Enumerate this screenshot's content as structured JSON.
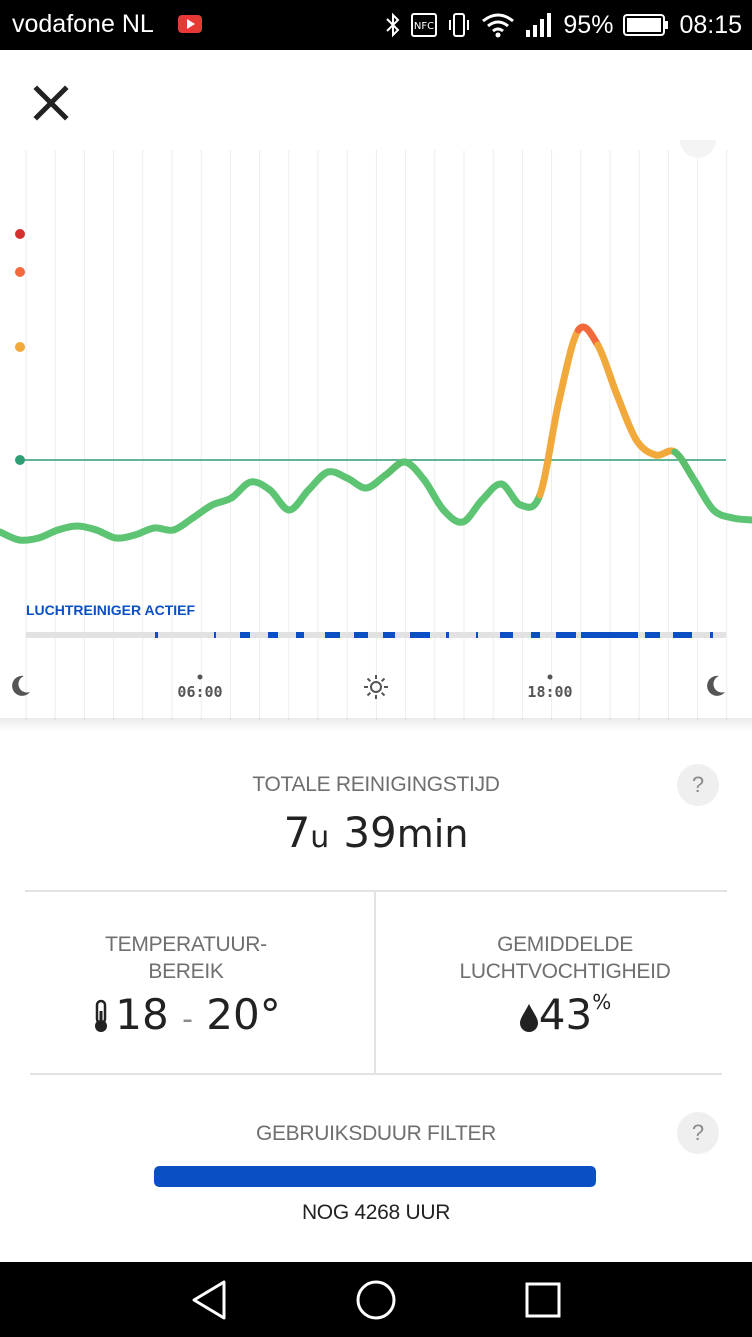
{
  "status_bar": {
    "carrier": "vodafone NL",
    "battery": "95%",
    "time": "08:15"
  },
  "chart_data": {
    "type": "line",
    "xlabel": "",
    "ylabel": "",
    "x_ticks": [
      "06:00",
      "18:00"
    ],
    "x_tick_icons": [
      "moon-icon",
      "sun-icon",
      "moon-icon"
    ],
    "series": [
      {
        "values": [
          [
            0,
            532
          ],
          [
            1,
            540
          ],
          [
            2,
            538
          ],
          [
            3,
            530
          ],
          [
            4,
            526
          ],
          [
            5,
            530
          ],
          [
            6,
            538
          ],
          [
            7,
            535
          ],
          [
            8,
            528
          ],
          [
            9,
            530
          ],
          [
            10,
            518
          ],
          [
            11,
            505
          ],
          [
            12,
            498
          ],
          [
            13,
            482
          ],
          [
            14,
            490
          ],
          [
            15,
            510
          ],
          [
            16,
            490
          ],
          [
            17,
            472
          ],
          [
            18,
            478
          ],
          [
            19,
            488
          ],
          [
            20,
            475
          ],
          [
            21,
            462
          ],
          [
            22,
            480
          ],
          [
            23,
            510
          ],
          [
            24,
            522
          ],
          [
            25,
            500
          ],
          [
            26,
            484
          ],
          [
            27,
            505
          ],
          [
            28,
            495
          ],
          [
            29,
            400
          ],
          [
            30,
            330
          ],
          [
            31,
            345
          ],
          [
            32,
            395
          ],
          [
            33,
            440
          ],
          [
            34,
            455
          ],
          [
            35,
            452
          ],
          [
            36,
            480
          ],
          [
            37,
            510
          ],
          [
            38,
            518
          ],
          [
            39,
            520
          ]
        ]
      }
    ],
    "reference_line": 460,
    "level_colors": [
      "#2e9e73",
      "#f2a93b",
      "#f26a3b",
      "#d32f2f"
    ],
    "activity_label": "LUCHTREINIGER ACTIEF",
    "grid": "vertical"
  },
  "stats": {
    "total_time": {
      "title": "TOTALE REINIGINGSTIJD",
      "hours": "7",
      "hours_unit": "u",
      "minutes": "39",
      "minutes_unit": "min"
    },
    "temperature": {
      "title_line1": "TEMPERATUUR-",
      "title_line2": "BEREIK",
      "min": "18",
      "separator": "-",
      "max": "20°"
    },
    "humidity": {
      "title_line1": "GEMIDDELDE",
      "title_line2": "LUCHTVOCHTIGHEID",
      "value": "43",
      "unit": "%"
    },
    "filter": {
      "title": "GEBRUIKSDUUR FILTER",
      "remaining": "NOG 4268 UUR",
      "level": 1.0
    }
  },
  "help": {
    "label": "?"
  },
  "colors": {
    "accent": "#0b4fc4",
    "good": "#2e9e73"
  }
}
